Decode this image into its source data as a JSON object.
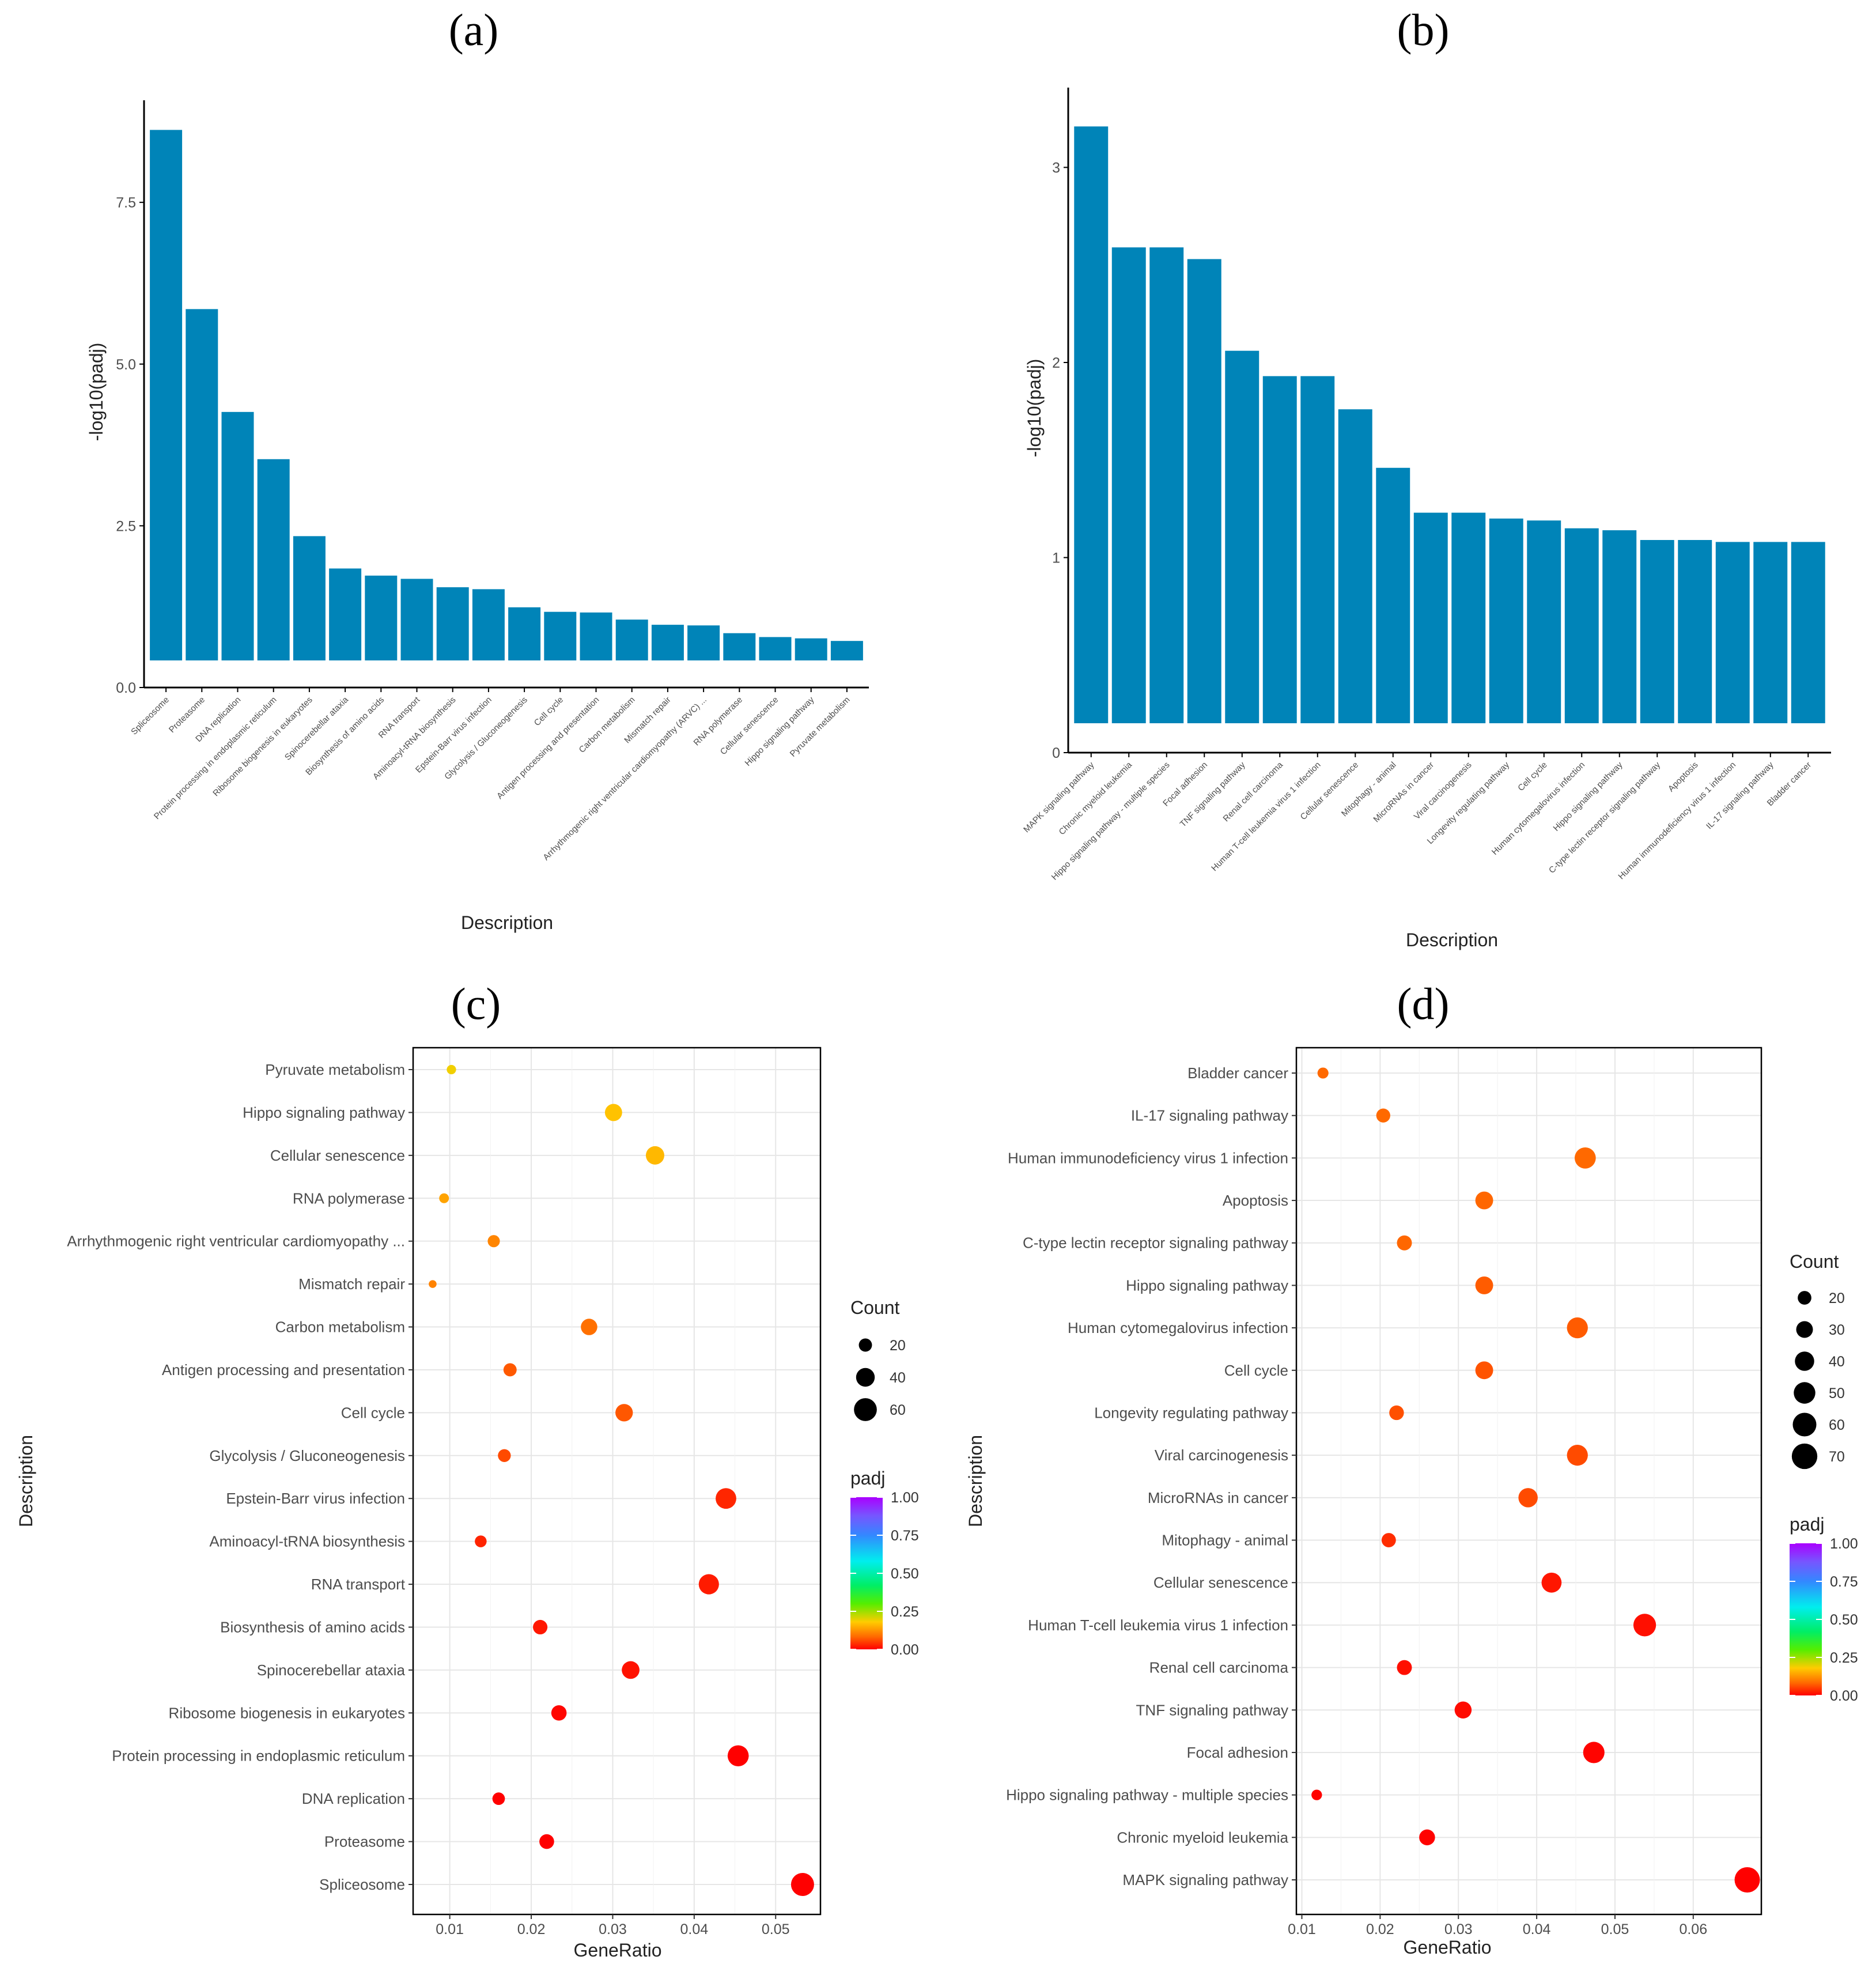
{
  "colors": {
    "bar": "#0084b8",
    "axis": "#000000",
    "grid": "#e6e6e6"
  },
  "chart_data": [
    {
      "id": "a",
      "panel_label": "(a)",
      "type": "bar",
      "xlabel": "Description",
      "ylabel": "-log10(padj)",
      "ylim": [
        0,
        8.9
      ],
      "yticks": [
        0.0,
        2.5,
        5.0,
        7.5
      ],
      "ytick_labels": [
        "0.0",
        "2.5",
        "5.0",
        "7.5"
      ],
      "categories": [
        "Spliceosome",
        "Proteasome",
        "DNA replication",
        "Protein processing in endoplasmic reticulum",
        "Ribosome biogenesis in eukaryotes",
        "Spinocerebellar ataxia",
        "Biosynthesis of amino acids",
        "RNA transport",
        "Aminoacyl-tRNA biosynthesis",
        "Epstein-Barr virus infection",
        "Glycolysis / Gluconeogenesis",
        "Cell cycle",
        "Antigen processing and presentation",
        "Carbon metabolism",
        "Mismatch repair",
        "Arrhythmogenic right ventricular cardiomyopathy (ARVC) ...",
        "RNA polymerase",
        "Cellular senescence",
        "Hippo signaling pathway",
        "Pyruvate metabolism"
      ],
      "values": [
        8.62,
        5.85,
        4.26,
        3.53,
        2.34,
        1.84,
        1.73,
        1.68,
        1.55,
        1.52,
        1.24,
        1.17,
        1.16,
        1.05,
        0.97,
        0.96,
        0.84,
        0.78,
        0.76,
        0.72
      ]
    },
    {
      "id": "b",
      "panel_label": "(b)",
      "type": "bar",
      "xlabel": "Description",
      "ylabel": "-log10(padj)",
      "ylim": [
        0,
        3.35
      ],
      "yticks": [
        0,
        1,
        2,
        3
      ],
      "ytick_labels": [
        "0",
        "1",
        "2",
        "3"
      ],
      "categories": [
        "MAPK signaling pathway",
        "Chronic myeloid leukemia",
        "Hippo signaling pathway - multiple species",
        "Focal adhesion",
        "TNF signaling pathway",
        "Renal cell carcinoma",
        "Human T-cell leukemia virus 1 infection",
        "Cellular senescence",
        "Mitophagy - animal",
        "MicroRNAs in cancer",
        "Viral carcinogenesis",
        "Longevity regulating pathway",
        "Cell cycle",
        "Human cytomegalovirus infection",
        "Hippo signaling pathway",
        "C-type lectin receptor signaling pathway",
        "Apoptosis",
        "Human immunodeficiency virus 1 infection",
        "IL-17 signaling pathway",
        "Bladder cancer"
      ],
      "values": [
        3.21,
        2.59,
        2.59,
        2.53,
        2.06,
        1.93,
        1.93,
        1.76,
        1.46,
        1.23,
        1.23,
        1.2,
        1.19,
        1.15,
        1.14,
        1.09,
        1.09,
        1.08,
        1.08,
        1.08
      ]
    },
    {
      "id": "c",
      "panel_label": "(c)",
      "type": "scatter",
      "xlabel": "GeneRatio",
      "ylabel": "Description",
      "xlim": [
        0.0055,
        0.0555
      ],
      "xticks": [
        0.01,
        0.02,
        0.03,
        0.04,
        0.05
      ],
      "xtick_labels": [
        "0.01",
        "0.02",
        "0.03",
        "0.04",
        "0.05"
      ],
      "categories": [
        "Pyruvate metabolism",
        "Hippo signaling pathway",
        "Cellular senescence",
        "RNA polymerase",
        "Arrhythmogenic right ventricular cardiomyopathy ...",
        "Mismatch repair",
        "Carbon metabolism",
        "Antigen processing and presentation",
        "Cell cycle",
        "Glycolysis / Gluconeogenesis",
        "Epstein-Barr virus infection",
        "Aminoacyl-tRNA biosynthesis",
        "RNA transport",
        "Biosynthesis of amino acids",
        "Spinocerebellar ataxia",
        "Ribosome biogenesis in eukaryotes",
        "Protein processing in endoplasmic reticulum",
        "DNA replication",
        "Proteasome",
        "Spliceosome"
      ],
      "x": [
        0.0102,
        0.0301,
        0.0352,
        0.0093,
        0.0154,
        0.0079,
        0.0271,
        0.0174,
        0.0314,
        0.0167,
        0.0439,
        0.0138,
        0.0418,
        0.0211,
        0.0322,
        0.0234,
        0.0454,
        0.016,
        0.0219,
        0.0533
      ],
      "count": [
        10,
        34,
        39,
        11,
        17,
        7,
        31,
        20,
        35,
        19,
        49,
        16,
        47,
        24,
        36,
        27,
        51,
        18,
        25,
        61
      ],
      "padj": [
        0.19,
        0.17,
        0.16,
        0.14,
        0.11,
        0.107,
        0.09,
        0.07,
        0.068,
        0.058,
        0.03,
        0.028,
        0.021,
        0.018,
        0.014,
        0.0046,
        0.0003,
        5e-05,
        1.4e-06,
        2.4e-09
      ],
      "size_legend": {
        "title": "Count",
        "values": [
          20,
          40,
          60
        ],
        "labels": [
          "20",
          "40",
          "60"
        ]
      },
      "color_legend": {
        "title": "padj",
        "ticks": [
          1.0,
          0.75,
          0.5,
          0.25,
          0.0
        ],
        "labels": [
          "1.00",
          "0.75",
          "0.50",
          "0.25",
          "0.00"
        ]
      }
    },
    {
      "id": "d",
      "panel_label": "(d)",
      "type": "scatter",
      "xlabel": "GeneRatio",
      "ylabel": "Description",
      "xlim": [
        0.0093,
        0.0687
      ],
      "xticks": [
        0.01,
        0.02,
        0.03,
        0.04,
        0.05,
        0.06
      ],
      "xtick_labels": [
        "0.01",
        "0.02",
        "0.03",
        "0.04",
        "0.05",
        "0.06"
      ],
      "categories": [
        "Bladder cancer",
        "IL-17 signaling pathway",
        "Human immunodeficiency virus 1 infection",
        "Apoptosis",
        "C-type lectin receptor signaling pathway",
        "Hippo signaling pathway",
        "Human cytomegalovirus infection",
        "Cell cycle",
        "Longevity regulating pathway",
        "Viral carcinogenesis",
        "MicroRNAs in cancer",
        "Mitophagy - animal",
        "Cellular senescence",
        "Human T-cell leukemia virus 1 infection",
        "Renal cell carcinoma",
        "TNF signaling pathway",
        "Focal adhesion",
        "Hippo signaling pathway - multiple species",
        "Chronic myeloid leukemia",
        "MAPK signaling pathway"
      ],
      "x": [
        0.0127,
        0.0204,
        0.0462,
        0.0333,
        0.0231,
        0.0333,
        0.0452,
        0.0333,
        0.0221,
        0.0452,
        0.0389,
        0.0211,
        0.0419,
        0.0538,
        0.0231,
        0.0306,
        0.0473,
        0.0119,
        0.026,
        0.0669
      ],
      "count": [
        13,
        21,
        48,
        34,
        24,
        34,
        47,
        34,
        23,
        47,
        40,
        22,
        43,
        55,
        24,
        31,
        49,
        12,
        27,
        69
      ],
      "padj": [
        0.083,
        0.083,
        0.083,
        0.081,
        0.081,
        0.072,
        0.071,
        0.065,
        0.063,
        0.059,
        0.059,
        0.035,
        0.017,
        0.012,
        0.012,
        0.0087,
        0.003,
        0.0026,
        0.0026,
        0.0006
      ],
      "size_legend": {
        "title": "Count",
        "values": [
          20,
          30,
          40,
          50,
          60,
          70
        ],
        "labels": [
          "20",
          "30",
          "40",
          "50",
          "60",
          "70"
        ]
      },
      "color_legend": {
        "title": "padj",
        "ticks": [
          1.0,
          0.75,
          0.5,
          0.25,
          0.0
        ],
        "labels": [
          "1.00",
          "0.75",
          "0.50",
          "0.25",
          "0.00"
        ]
      }
    }
  ]
}
